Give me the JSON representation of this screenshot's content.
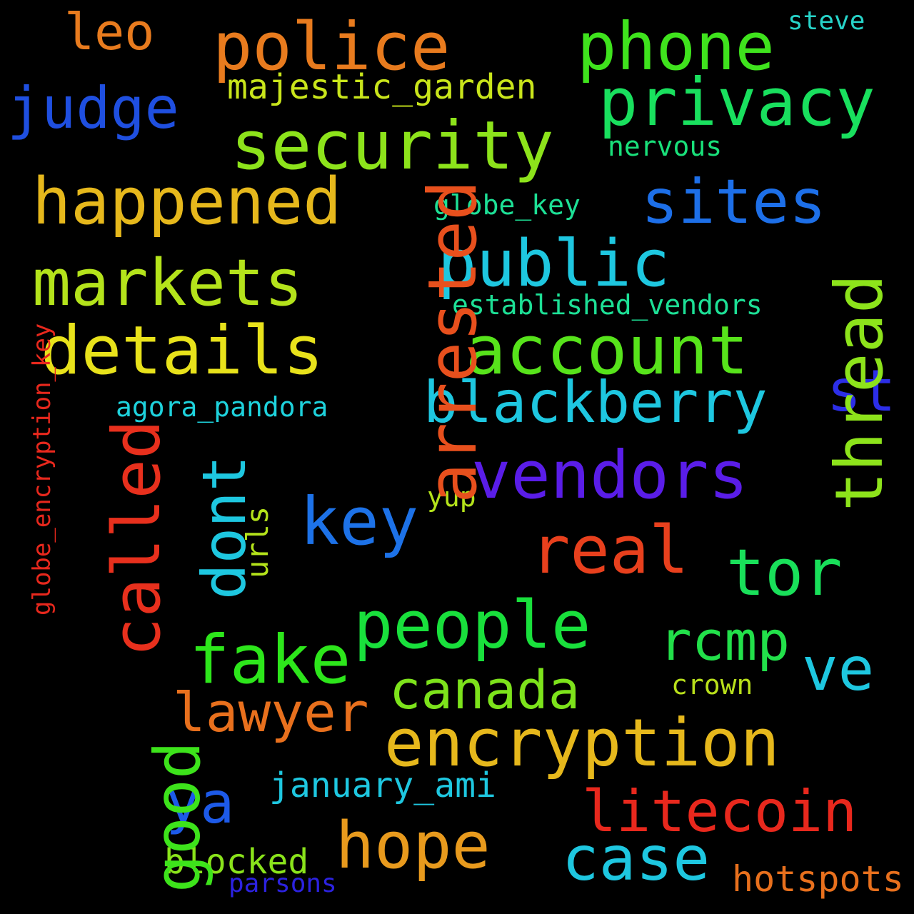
{
  "words": [
    {
      "text": "police",
      "color": "#e87b1e",
      "vertical": false
    },
    {
      "text": "phone",
      "color": "#3fe31d",
      "vertical": false
    },
    {
      "text": "leo",
      "color": "#e87b1e",
      "vertical": false
    },
    {
      "text": "steve",
      "color": "#27d3c8",
      "vertical": false
    },
    {
      "text": "privacy",
      "color": "#19e05e",
      "vertical": false
    },
    {
      "text": "judge",
      "color": "#1f4fe0",
      "vertical": false
    },
    {
      "text": "majestic_garden",
      "color": "#c9e51b",
      "vertical": false
    },
    {
      "text": "security",
      "color": "#8de31b",
      "vertical": false
    },
    {
      "text": "nervous",
      "color": "#19e07a",
      "vertical": false
    },
    {
      "text": "happened",
      "color": "#e6b81c",
      "vertical": false
    },
    {
      "text": "sites",
      "color": "#1d6fe8",
      "vertical": false
    },
    {
      "text": "globe_key",
      "color": "#1de096",
      "vertical": false
    },
    {
      "text": "public",
      "color": "#1ec7e0",
      "vertical": false
    },
    {
      "text": "markets",
      "color": "#b4e31b",
      "vertical": false
    },
    {
      "text": "established_vendors",
      "color": "#1de096",
      "vertical": false
    },
    {
      "text": "details",
      "color": "#e8e21b",
      "vertical": false
    },
    {
      "text": "account",
      "color": "#57e31b",
      "vertical": false
    },
    {
      "text": "blackberry",
      "color": "#1ec7e0",
      "vertical": false
    },
    {
      "text": "st",
      "color": "#2c2ee8",
      "vertical": false
    },
    {
      "text": "agora_pandora",
      "color": "#1ed2dc",
      "vertical": false
    },
    {
      "text": "vendors",
      "color": "#5a1de8",
      "vertical": false
    },
    {
      "text": "key",
      "color": "#1d72e8",
      "vertical": false
    },
    {
      "text": "yup",
      "color": "#b4e31b",
      "vertical": false
    },
    {
      "text": "real",
      "color": "#e8401d",
      "vertical": false
    },
    {
      "text": "tor",
      "color": "#19e05a",
      "vertical": false
    },
    {
      "text": "people",
      "color": "#19e03c",
      "vertical": false
    },
    {
      "text": "fake",
      "color": "#2de61b",
      "vertical": false
    },
    {
      "text": "rcmp",
      "color": "#22e04a",
      "vertical": false
    },
    {
      "text": "ve",
      "color": "#1ec7e0",
      "vertical": false
    },
    {
      "text": "crown",
      "color": "#b9e01b",
      "vertical": false
    },
    {
      "text": "canada",
      "color": "#7de31b",
      "vertical": false
    },
    {
      "text": "lawyer",
      "color": "#e8701d",
      "vertical": false
    },
    {
      "text": "encryption",
      "color": "#e6b81c",
      "vertical": false
    },
    {
      "text": "ya",
      "color": "#1d5ae8",
      "vertical": false
    },
    {
      "text": "january_ami",
      "color": "#1ec7e0",
      "vertical": false
    },
    {
      "text": "litecoin",
      "color": "#e8281d",
      "vertical": false
    },
    {
      "text": "hope",
      "color": "#e89a1d",
      "vertical": false
    },
    {
      "text": "case",
      "color": "#1ec7e0",
      "vertical": false
    },
    {
      "text": "blocked",
      "color": "#8ae31b",
      "vertical": false
    },
    {
      "text": "parsons",
      "color": "#2c22e0",
      "vertical": false
    },
    {
      "text": "hotspots",
      "color": "#e8701d",
      "vertical": false
    },
    {
      "text": "arrested",
      "color": "#e8501d",
      "vertical": true
    },
    {
      "text": "thread",
      "color": "#8de31b",
      "vertical": true
    },
    {
      "text": "called",
      "color": "#e8301d",
      "vertical": true
    },
    {
      "text": "dont",
      "color": "#1ec7e0",
      "vertical": true
    },
    {
      "text": "urls",
      "color": "#b4e31b",
      "vertical": true
    },
    {
      "text": "globe_encryption_key",
      "color": "#e8281d",
      "vertical": true
    },
    {
      "text": "good",
      "color": "#3de31b",
      "vertical": true
    }
  ]
}
